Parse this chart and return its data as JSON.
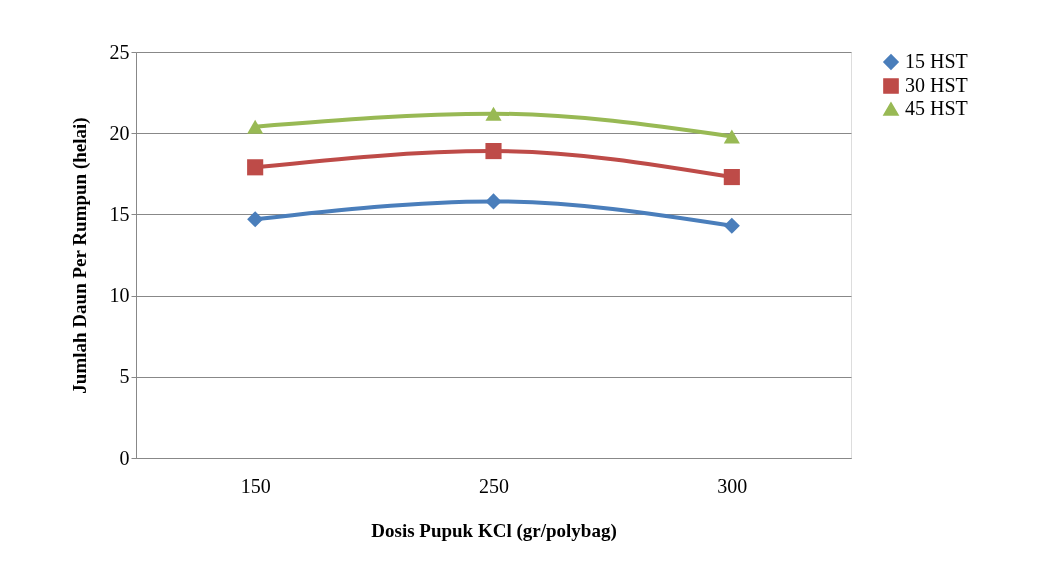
{
  "chart_data": {
    "type": "line",
    "xlabel": "Dosis Pupuk KCl (gr/polybag)",
    "ylabel": "Jumlah Daun Per Rumpun (helai)",
    "categories": [
      "150",
      "250",
      "300"
    ],
    "series": [
      {
        "name": "15 HST",
        "color": "#4a7ebb",
        "marker": "diamond",
        "values": [
          14.7,
          15.8,
          14.3
        ]
      },
      {
        "name": "30 HST",
        "color": "#be4b48",
        "marker": "square",
        "values": [
          17.9,
          18.9,
          17.3
        ]
      },
      {
        "name": "45 HST",
        "color": "#98b954",
        "marker": "triangle",
        "values": [
          20.4,
          21.2,
          19.8
        ]
      }
    ],
    "ylim": [
      0,
      25
    ],
    "yticks": [
      0,
      5,
      10,
      15,
      20,
      25
    ],
    "grid": "y",
    "legend": "right",
    "line_style": "solid"
  }
}
